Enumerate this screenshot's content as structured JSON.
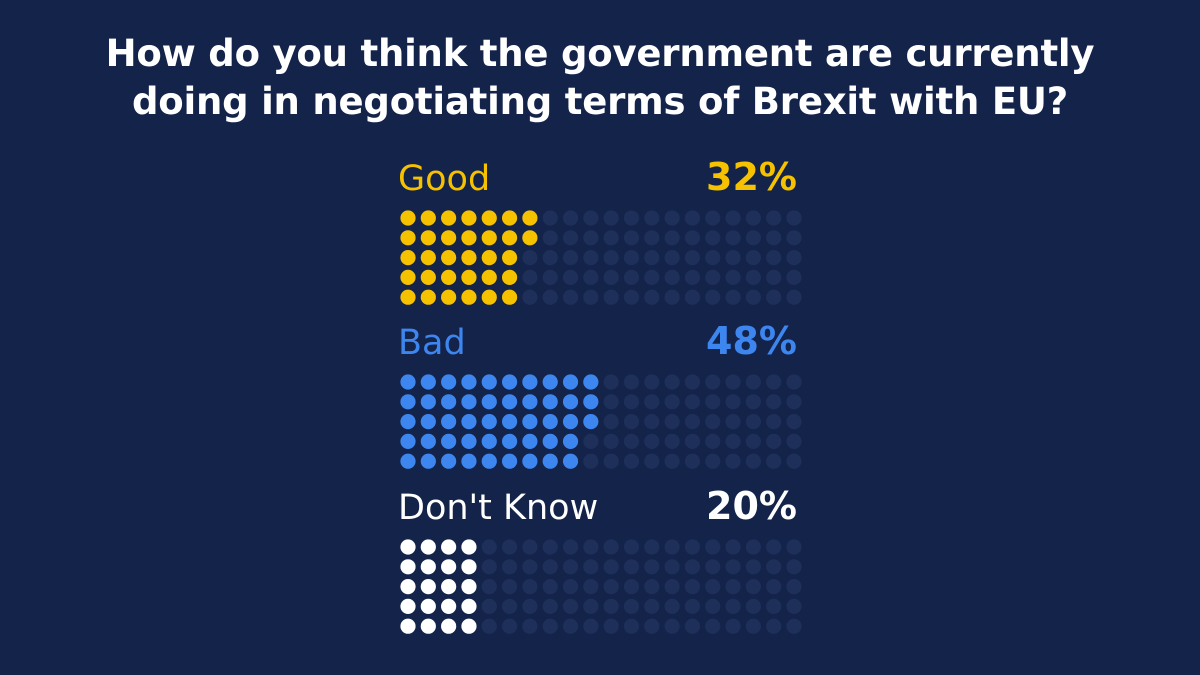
{
  "title_lines": [
    "How do you think the government are currently",
    "doing in negotiating terms of Brexit with EU?"
  ],
  "colors": {
    "background": "#13234a",
    "empty_dot": "#1e2f59",
    "good": "#f6c200",
    "bad": "#3d86ef",
    "dont_know": "#ffffff"
  },
  "chart_data": {
    "type": "waffle",
    "title": "How do you think the government are currently doing in negotiating terms of Brexit with EU?",
    "unit": "%",
    "grid": {
      "columns": 20,
      "rows": 5,
      "total_dots": 100
    },
    "categories": [
      "Good",
      "Bad",
      "Don't Know"
    ],
    "values": [
      32,
      48,
      20
    ],
    "value_labels": [
      "32%",
      "48%",
      "20%"
    ],
    "series": [
      {
        "name": "Good",
        "value": 32,
        "label": "32%",
        "color": "#f6c200"
      },
      {
        "name": "Bad",
        "value": 48,
        "label": "48%",
        "color": "#3d86ef"
      },
      {
        "name": "Don't Know",
        "value": 20,
        "label": "20%",
        "color": "#ffffff"
      }
    ]
  }
}
